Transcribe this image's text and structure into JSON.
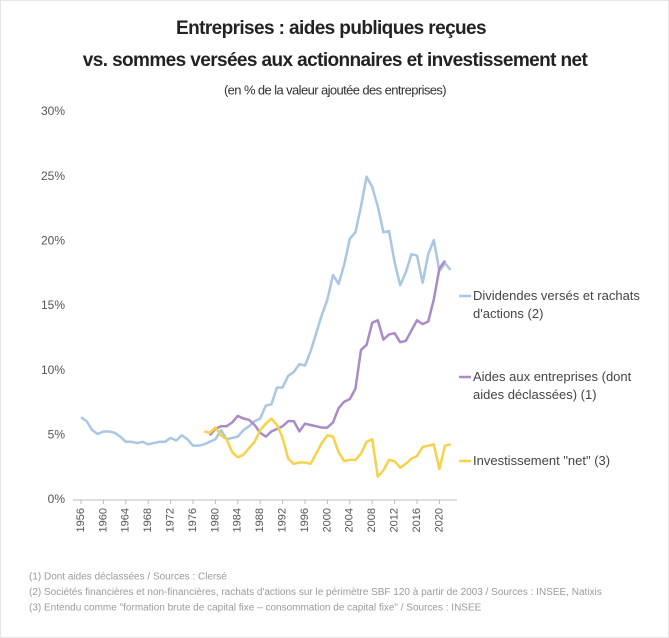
{
  "chart_data": {
    "type": "line",
    "title": "Entreprises : aides publiques reçues",
    "title_line2": "vs. sommes versées aux actionnaires et investissement net",
    "subtitle": "(en % de la valeur ajoutée des entreprises)",
    "x": [
      1956,
      1957,
      1958,
      1959,
      1960,
      1961,
      1962,
      1963,
      1964,
      1965,
      1966,
      1967,
      1968,
      1969,
      1970,
      1971,
      1972,
      1973,
      1974,
      1975,
      1976,
      1977,
      1978,
      1979,
      1980,
      1981,
      1982,
      1983,
      1984,
      1985,
      1986,
      1987,
      1988,
      1989,
      1990,
      1991,
      1992,
      1993,
      1994,
      1995,
      1996,
      1997,
      1998,
      1999,
      2000,
      2001,
      2002,
      2003,
      2004,
      2005,
      2006,
      2007,
      2008,
      2009,
      2010,
      2011,
      2012,
      2013,
      2014,
      2015,
      2016,
      2017,
      2018,
      2019,
      2020,
      2021,
      2022
    ],
    "xlim": [
      1956,
      2022
    ],
    "xticks": [
      1956,
      1960,
      1964,
      1968,
      1972,
      1976,
      1980,
      1984,
      1988,
      1992,
      1996,
      2000,
      2004,
      2008,
      2012,
      2016,
      2020
    ],
    "ylim": [
      0,
      30
    ],
    "yticks": [
      {
        "value": 0,
        "label": "0%"
      },
      {
        "value": 5,
        "label": "5%"
      },
      {
        "value": 10,
        "label": "10%"
      },
      {
        "value": 15,
        "label": "15%"
      },
      {
        "value": 20,
        "label": "20%"
      },
      {
        "value": 25,
        "label": "25%"
      },
      {
        "value": 30,
        "label": "30%"
      }
    ],
    "grid": false,
    "series": [
      {
        "name": "Dividendes versés et rachats d'actions (2)",
        "color": "#a9c6e3",
        "values": [
          6.4,
          6.1,
          5.4,
          5.1,
          5.3,
          5.3,
          5.2,
          4.9,
          4.5,
          4.5,
          4.4,
          4.5,
          4.3,
          4.4,
          4.5,
          4.5,
          4.8,
          4.6,
          5.0,
          4.7,
          4.2,
          4.2,
          4.3,
          4.5,
          4.7,
          5.4,
          4.7,
          4.8,
          4.9,
          5.4,
          5.7,
          6.1,
          6.3,
          7.3,
          7.4,
          8.7,
          8.7,
          9.6,
          9.9,
          10.5,
          10.4,
          11.5,
          12.9,
          14.3,
          15.5,
          17.4,
          16.7,
          18.2,
          20.2,
          20.7,
          22.7,
          25.0,
          24.2,
          22.7,
          20.7,
          20.8,
          18.4,
          16.6,
          17.6,
          19.0,
          18.9,
          16.8,
          19.0,
          20.1,
          17.7,
          18.3,
          17.8
        ]
      },
      {
        "name": "Aides aux entreprises (dont aides déclassées) (1)",
        "color": "#a98bc6",
        "values": [
          null,
          null,
          null,
          null,
          null,
          null,
          null,
          null,
          null,
          null,
          null,
          null,
          null,
          null,
          null,
          null,
          null,
          null,
          null,
          null,
          null,
          null,
          null,
          5.0,
          5.5,
          5.7,
          5.7,
          6.0,
          6.5,
          6.3,
          6.2,
          5.8,
          5.2,
          4.9,
          5.3,
          5.5,
          5.7,
          6.1,
          6.1,
          5.3,
          5.9,
          5.8,
          5.7,
          5.6,
          5.6,
          6.0,
          7.1,
          7.6,
          7.8,
          8.6,
          11.6,
          12.0,
          13.7,
          13.9,
          12.4,
          12.8,
          12.9,
          12.2,
          12.3,
          13.1,
          13.9,
          13.6,
          13.8,
          15.5,
          17.9,
          18.5,
          null
        ]
      },
      {
        "name": "Investissement \"net\" (3)",
        "color": "#f5d24a",
        "values": [
          null,
          null,
          null,
          null,
          null,
          null,
          null,
          null,
          null,
          null,
          null,
          null,
          null,
          null,
          null,
          null,
          null,
          null,
          null,
          null,
          null,
          null,
          5.3,
          5.2,
          5.6,
          5.0,
          4.7,
          3.7,
          3.3,
          3.5,
          4.0,
          4.5,
          5.4,
          5.9,
          6.3,
          5.8,
          4.8,
          3.2,
          2.8,
          2.9,
          2.9,
          2.8,
          3.6,
          4.4,
          5.0,
          4.9,
          3.7,
          3.0,
          3.1,
          3.1,
          3.6,
          4.5,
          4.7,
          1.8,
          2.3,
          3.1,
          3.0,
          2.5,
          2.8,
          3.2,
          3.4,
          4.1,
          4.2,
          4.3,
          2.4,
          4.2,
          4.3
        ]
      }
    ],
    "notes": [
      "(1) Dont aides déclassées / Sources : Clersé",
      "(2) Sociétés financières et non-financières, rachats d'actions sur le périmètre SBF 120 à partir de 2003 / Sources : INSEE, Natixis",
      "(3) Entendu comme \"formation brute de capital fixe – consommation de capital fixe\" / Sources : INSEE"
    ]
  }
}
